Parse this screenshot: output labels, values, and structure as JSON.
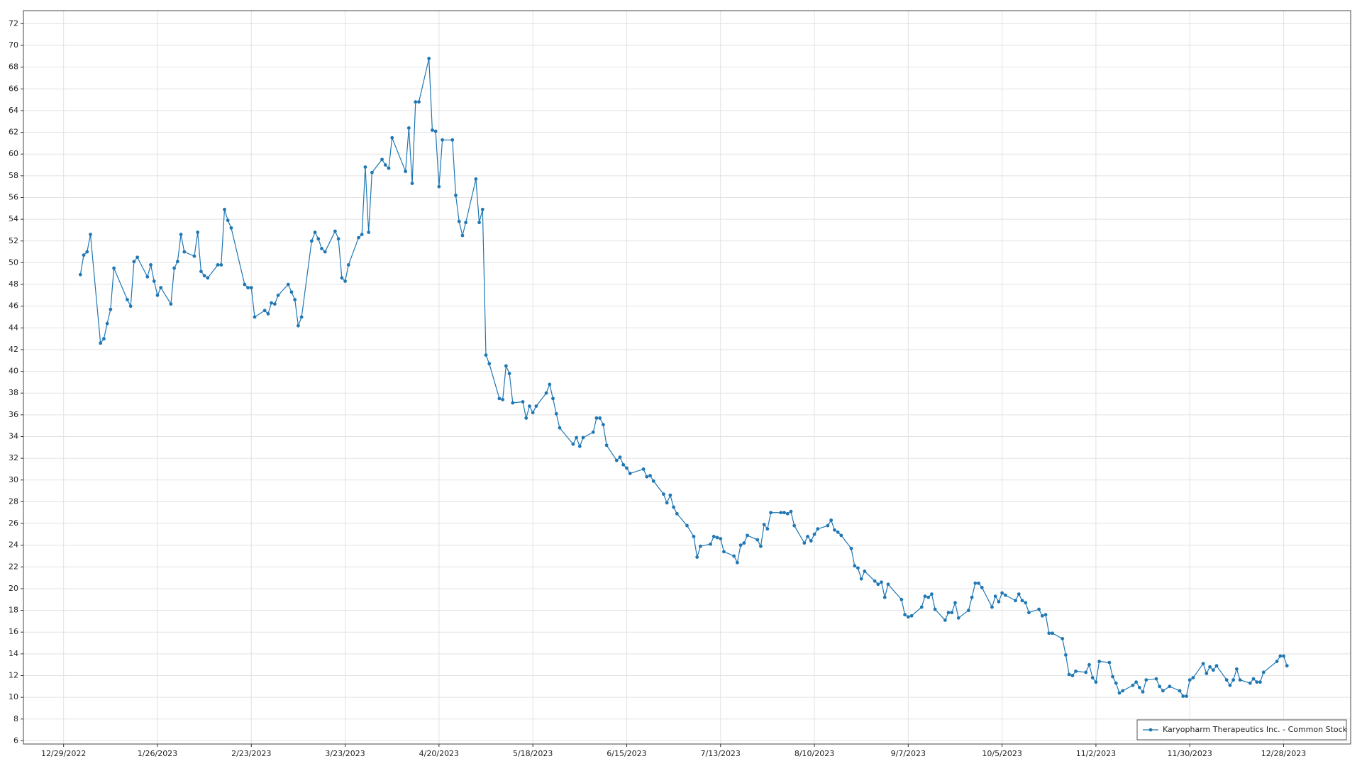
{
  "chart_data": {
    "type": "line",
    "x": [
      "1/3/2023",
      "1/4/2023",
      "1/5/2023",
      "1/6/2023",
      "1/9/2023",
      "1/10/2023",
      "1/11/2023",
      "1/12/2023",
      "1/13/2023",
      "1/17/2023",
      "1/18/2023",
      "1/19/2023",
      "1/20/2023",
      "1/23/2023",
      "1/24/2023",
      "1/25/2023",
      "1/26/2023",
      "1/27/2023",
      "1/30/2023",
      "1/31/2023",
      "2/1/2023",
      "2/2/2023",
      "2/3/2023",
      "2/6/2023",
      "2/7/2023",
      "2/8/2023",
      "2/9/2023",
      "2/10/2023",
      "2/13/2023",
      "2/14/2023",
      "2/15/2023",
      "2/16/2023",
      "2/17/2023",
      "2/21/2023",
      "2/22/2023",
      "2/23/2023",
      "2/24/2023",
      "2/27/2023",
      "2/28/2023",
      "3/1/2023",
      "3/2/2023",
      "3/3/2023",
      "3/6/2023",
      "3/7/2023",
      "3/8/2023",
      "3/9/2023",
      "3/10/2023",
      "3/13/2023",
      "3/14/2023",
      "3/15/2023",
      "3/16/2023",
      "3/17/2023",
      "3/20/2023",
      "3/21/2023",
      "3/22/2023",
      "3/23/2023",
      "3/24/2023",
      "3/27/2023",
      "3/28/2023",
      "3/29/2023",
      "3/30/2023",
      "3/31/2023",
      "4/3/2023",
      "4/4/2023",
      "4/5/2023",
      "4/6/2023",
      "4/10/2023",
      "4/11/2023",
      "4/12/2023",
      "4/13/2023",
      "4/14/2023",
      "4/17/2023",
      "4/18/2023",
      "4/19/2023",
      "4/20/2023",
      "4/21/2023",
      "4/24/2023",
      "4/25/2023",
      "4/26/2023",
      "4/27/2023",
      "4/28/2023",
      "5/1/2023",
      "5/2/2023",
      "5/3/2023",
      "5/4/2023",
      "5/5/2023",
      "5/8/2023",
      "5/9/2023",
      "5/10/2023",
      "5/11/2023",
      "5/12/2023",
      "5/15/2023",
      "5/16/2023",
      "5/17/2023",
      "5/18/2023",
      "5/19/2023",
      "5/22/2023",
      "5/23/2023",
      "5/24/2023",
      "5/25/2023",
      "5/26/2023",
      "5/30/2023",
      "5/31/2023",
      "6/1/2023",
      "6/2/2023",
      "6/5/2023",
      "6/6/2023",
      "6/7/2023",
      "6/8/2023",
      "6/9/2023",
      "6/12/2023",
      "6/13/2023",
      "6/14/2023",
      "6/15/2023",
      "6/16/2023",
      "6/20/2023",
      "6/21/2023",
      "6/22/2023",
      "6/23/2023",
      "6/26/2023",
      "6/27/2023",
      "6/28/2023",
      "6/29/2023",
      "6/30/2023",
      "7/3/2023",
      "7/5/2023",
      "7/6/2023",
      "7/7/2023",
      "7/10/2023",
      "7/11/2023",
      "7/12/2023",
      "7/13/2023",
      "7/14/2023",
      "7/17/2023",
      "7/18/2023",
      "7/19/2023",
      "7/20/2023",
      "7/21/2023",
      "7/24/2023",
      "7/25/2023",
      "7/26/2023",
      "7/27/2023",
      "7/28/2023",
      "7/31/2023",
      "8/1/2023",
      "8/2/2023",
      "8/3/2023",
      "8/4/2023",
      "8/7/2023",
      "8/8/2023",
      "8/9/2023",
      "8/10/2023",
      "8/11/2023",
      "8/14/2023",
      "8/15/2023",
      "8/16/2023",
      "8/17/2023",
      "8/18/2023",
      "8/21/2023",
      "8/22/2023",
      "8/23/2023",
      "8/24/2023",
      "8/25/2023",
      "8/28/2023",
      "8/29/2023",
      "8/30/2023",
      "8/31/2023",
      "9/1/2023",
      "9/5/2023",
      "9/6/2023",
      "9/7/2023",
      "9/8/2023",
      "9/11/2023",
      "9/12/2023",
      "9/13/2023",
      "9/14/2023",
      "9/15/2023",
      "9/18/2023",
      "9/19/2023",
      "9/20/2023",
      "9/21/2023",
      "9/22/2023",
      "9/25/2023",
      "9/26/2023",
      "9/27/2023",
      "9/28/2023",
      "9/29/2023",
      "10/2/2023",
      "10/3/2023",
      "10/4/2023",
      "10/5/2023",
      "10/6/2023",
      "10/9/2023",
      "10/10/2023",
      "10/11/2023",
      "10/12/2023",
      "10/13/2023",
      "10/16/2023",
      "10/17/2023",
      "10/18/2023",
      "10/19/2023",
      "10/20/2023",
      "10/23/2023",
      "10/24/2023",
      "10/25/2023",
      "10/26/2023",
      "10/27/2023",
      "10/30/2023",
      "10/31/2023",
      "11/1/2023",
      "11/2/2023",
      "11/3/2023",
      "11/6/2023",
      "11/7/2023",
      "11/8/2023",
      "11/9/2023",
      "11/10/2023",
      "11/13/2023",
      "11/14/2023",
      "11/15/2023",
      "11/16/2023",
      "11/17/2023",
      "11/20/2023",
      "11/21/2023",
      "11/22/2023",
      "11/24/2023",
      "11/27/2023",
      "11/28/2023",
      "11/29/2023",
      "11/30/2023",
      "12/1/2023",
      "12/4/2023",
      "12/5/2023",
      "12/6/2023",
      "12/7/2023",
      "12/8/2023",
      "12/11/2023",
      "12/12/2023",
      "12/13/2023",
      "12/14/2023",
      "12/15/2023",
      "12/18/2023",
      "12/19/2023",
      "12/20/2023",
      "12/21/2023",
      "12/22/2023",
      "12/26/2023",
      "12/27/2023",
      "12/28/2023",
      "12/29/2023"
    ],
    "series": [
      {
        "name": "Karyopharm Therapeutics Inc. - Common Stock",
        "color": "#1f77b4",
        "values": [
          48.9,
          50.7,
          51,
          52.6,
          42.6,
          43,
          44.4,
          45.7,
          49.5,
          46.6,
          46,
          50.1,
          50.5,
          48.7,
          49.8,
          48.3,
          47,
          47.7,
          46.2,
          49.5,
          50.1,
          52.6,
          51,
          50.6,
          52.8,
          49.2,
          48.8,
          48.6,
          49.8,
          49.8,
          54.9,
          53.9,
          53.2,
          48,
          47.7,
          47.7,
          45,
          45.6,
          45.3,
          46.3,
          46.2,
          47,
          48,
          47.3,
          46.6,
          44.2,
          45,
          52,
          52.8,
          52.2,
          51.3,
          51,
          52.9,
          52.2,
          48.6,
          48.3,
          49.8,
          52.3,
          52.6,
          58.8,
          52.8,
          58.3,
          59.5,
          59,
          58.7,
          61.5,
          58.4,
          62.4,
          57.3,
          64.8,
          64.8,
          68.8,
          62.2,
          62.1,
          57,
          61.3,
          61.3,
          56.2,
          53.8,
          52.5,
          53.7,
          57.7,
          53.7,
          54.9,
          41.5,
          40.7,
          37.5,
          37.4,
          40.5,
          39.8,
          37.1,
          37.2,
          35.7,
          36.8,
          36.2,
          36.8,
          38,
          38.8,
          37.5,
          36.1,
          34.8,
          33.3,
          33.9,
          33.1,
          33.9,
          34.4,
          35.7,
          35.7,
          35.1,
          33.2,
          31.8,
          32.1,
          31.4,
          31.1,
          30.6,
          31,
          30.3,
          30.4,
          29.9,
          28.7,
          27.9,
          28.6,
          27.5,
          26.9,
          25.8,
          24.8,
          22.9,
          23.9,
          24.1,
          24.8,
          24.7,
          24.6,
          23.4,
          23,
          22.4,
          24,
          24.2,
          24.9,
          24.5,
          23.9,
          25.9,
          25.5,
          27,
          27,
          27,
          26.9,
          27.1,
          25.8,
          24.2,
          24.8,
          24.4,
          25,
          25.5,
          25.8,
          26.3,
          25.4,
          25.2,
          24.9,
          23.7,
          22.1,
          21.9,
          20.9,
          21.6,
          20.7,
          20.4,
          20.6,
          19.2,
          20.4,
          19,
          17.6,
          17.4,
          17.5,
          18.3,
          19.3,
          19.2,
          19.5,
          18.1,
          17.1,
          17.8,
          17.8,
          18.7,
          17.3,
          18,
          19.2,
          20.5,
          20.5,
          20.1,
          18.3,
          19.3,
          18.8,
          19.6,
          19.4,
          18.9,
          19.5,
          18.9,
          18.7,
          17.8,
          18.1,
          17.5,
          17.6,
          15.9,
          15.9,
          15.4,
          13.9,
          12.1,
          12,
          12.4,
          12.3,
          13,
          11.8,
          11.4,
          13.3,
          13.2,
          11.9,
          11.3,
          10.4,
          10.6,
          11.1,
          11.4,
          10.9,
          10.5,
          11.6,
          11.7,
          11,
          10.6,
          11,
          10.6,
          10.1,
          10.1,
          11.6,
          11.8,
          13.1,
          12.2,
          12.8,
          12.5,
          12.9,
          11.6,
          11.1,
          11.6,
          12.6,
          11.6,
          11.3,
          11.7,
          11.4,
          11.4,
          12.3,
          13.3,
          13.8,
          13.8,
          12.9
        ]
      }
    ],
    "xlim": [
      "12/17/2022",
      "1/17/2024"
    ],
    "xticks": [
      "12/29/2022",
      "1/26/2023",
      "2/23/2023",
      "3/23/2023",
      "4/20/2023",
      "5/18/2023",
      "6/15/2023",
      "7/13/2023",
      "8/10/2023",
      "9/7/2023",
      "10/5/2023",
      "11/2/2023",
      "11/30/2023",
      "12/28/2023"
    ],
    "ylim": [
      5.7,
      73.2
    ],
    "yticks": [
      6,
      8,
      10,
      12,
      14,
      16,
      18,
      20,
      22,
      24,
      26,
      28,
      30,
      32,
      34,
      36,
      38,
      40,
      42,
      44,
      46,
      48,
      50,
      52,
      54,
      56,
      58,
      60,
      62,
      64,
      66,
      68,
      70,
      72
    ],
    "grid": true,
    "legend": "lower right"
  }
}
